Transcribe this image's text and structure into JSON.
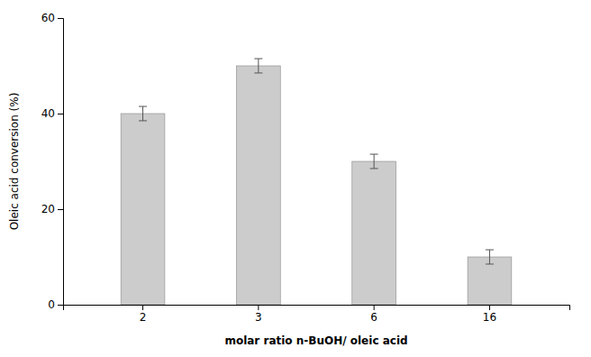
{
  "chart_data": {
    "type": "bar",
    "categories": [
      "2",
      "3",
      "6",
      "16"
    ],
    "values": [
      40,
      50,
      30,
      10
    ],
    "errors": [
      1.5,
      1.5,
      1.5,
      1.5
    ],
    "color": "#cccccc",
    "ylim": [
      0,
      60
    ],
    "yticks": [
      0,
      20,
      40,
      60
    ],
    "ylabel": "Oleic acid conversion (%)",
    "xlabel": "molar ratio n-BuOH/ oleic acid",
    "grid": false
  }
}
